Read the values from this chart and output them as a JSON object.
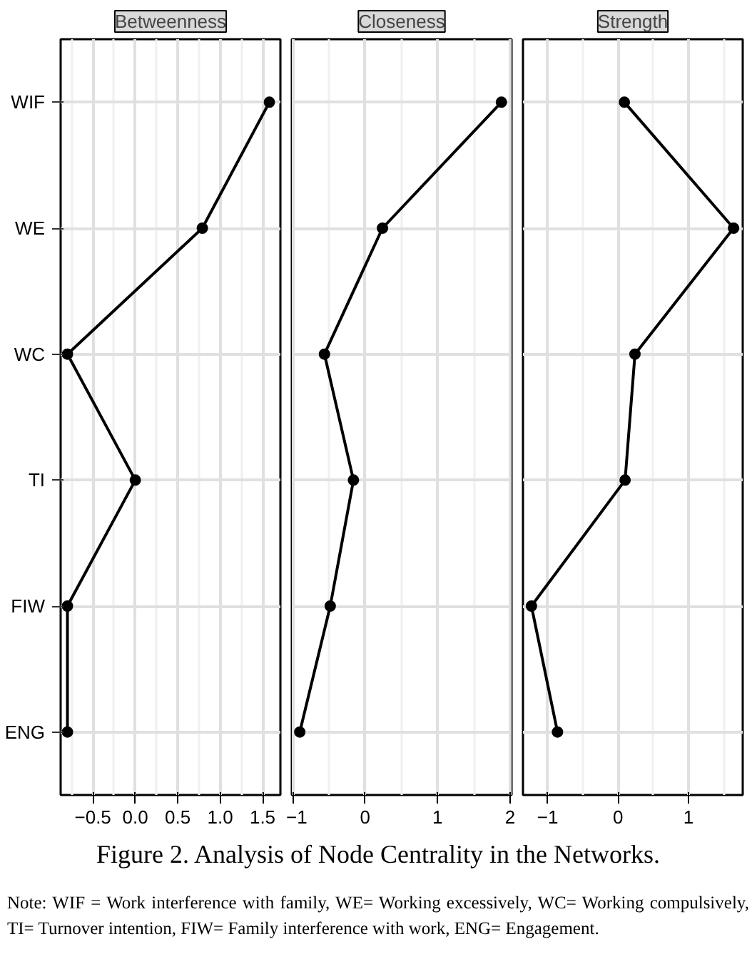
{
  "chart_data": [
    {
      "type": "line",
      "title": "Betweenness",
      "orientation": "horizontal",
      "categories": [
        "WIF",
        "WE",
        "WC",
        "TI",
        "FIW",
        "ENG"
      ],
      "values": [
        1.58,
        0.79,
        -0.8,
        0.0,
        -0.8,
        -0.8
      ],
      "color": "#000000",
      "xlim": [
        -0.88,
        1.71
      ],
      "xticks": [
        {
          "value": -0.5,
          "label": "−0.5"
        },
        {
          "value": 0,
          "label": "0.0"
        },
        {
          "value": 0.5,
          "label": "0.5"
        },
        {
          "value": 1,
          "label": "1.0"
        },
        {
          "value": 1.5,
          "label": "1.5"
        }
      ],
      "grid": true,
      "marker": "circle",
      "line_style": "solid",
      "annotations": [
        "Figure 2. Analysis of Node Centrality in the Networks.",
        "Note: WIF = Work interference with family, WE= Working excessively, WC= Working compulsively, TI= Turnover intention, FIW= Family interference with work, ENG= Engagement."
      ]
    },
    {
      "type": "line",
      "title": "Closeness",
      "orientation": "horizontal",
      "categories": [
        "WIF",
        "WE",
        "WC",
        "TI",
        "FIW",
        "ENG"
      ],
      "values": [
        1.88,
        0.24,
        -0.56,
        -0.16,
        -0.48,
        -0.9
      ],
      "color": "#000000",
      "xlim": [
        -1.01,
        2.02
      ],
      "xticks": [
        {
          "value": -1,
          "label": "−1"
        },
        0,
        1,
        2
      ],
      "grid": true,
      "marker": "circle",
      "line_style": "solid",
      "tick_labels": "x"
    },
    {
      "type": "line",
      "title": "Strength",
      "orientation": "horizontal",
      "categories": [
        "WIF",
        "WE",
        "WC",
        "TI",
        "FIW",
        "ENG"
      ],
      "values": [
        0.09,
        1.64,
        0.24,
        0.1,
        -1.23,
        -0.86
      ],
      "color": "#000000",
      "xlim": [
        -1.35,
        1.77
      ],
      "xticks": [
        {
          "value": -1,
          "label": "−1"
        },
        0,
        1
      ],
      "grid": true,
      "marker": "circle",
      "line_style": "solid",
      "tick_labels": "x"
    }
  ]
}
